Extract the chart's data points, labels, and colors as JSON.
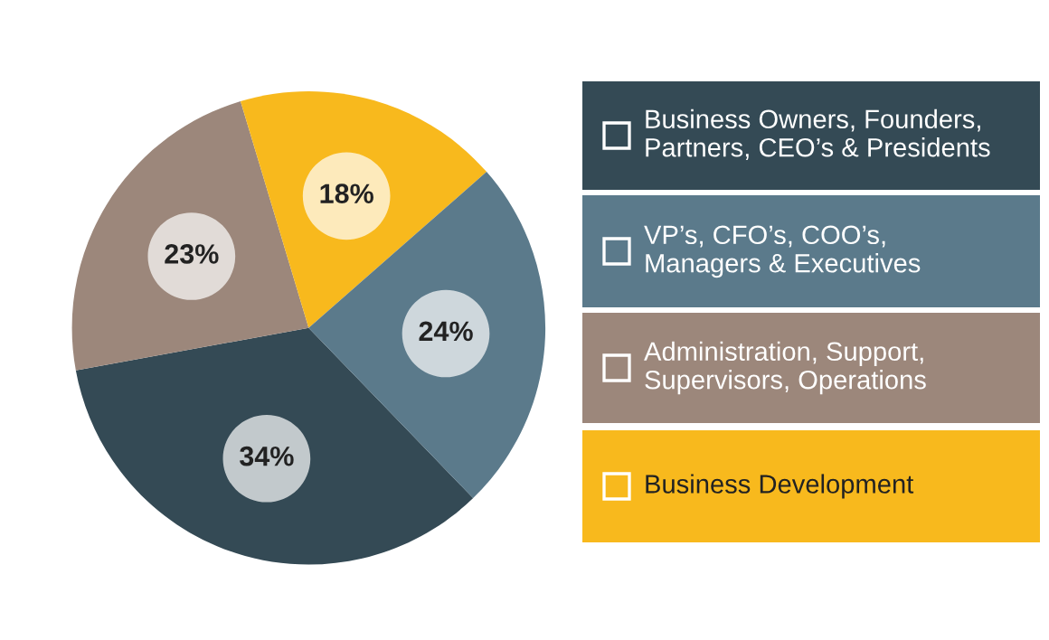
{
  "chart_data": {
    "type": "pie",
    "categories": [
      "Business Owners, Founders,\nPartners, CEO’s & Presidents",
      "Administration, Support,\nSupervisors, Operations",
      "Business Development",
      "VP’s, CFO’s, COO’s,\nManagers & Executives"
    ],
    "values": [
      34,
      23,
      18,
      24
    ],
    "colors": [
      "#344a55",
      "#9c877b",
      "#f8b91d",
      "#5b7a8b"
    ],
    "value_labels": [
      "34%",
      "23%",
      "18%",
      "24%"
    ],
    "legend": "right"
  }
}
